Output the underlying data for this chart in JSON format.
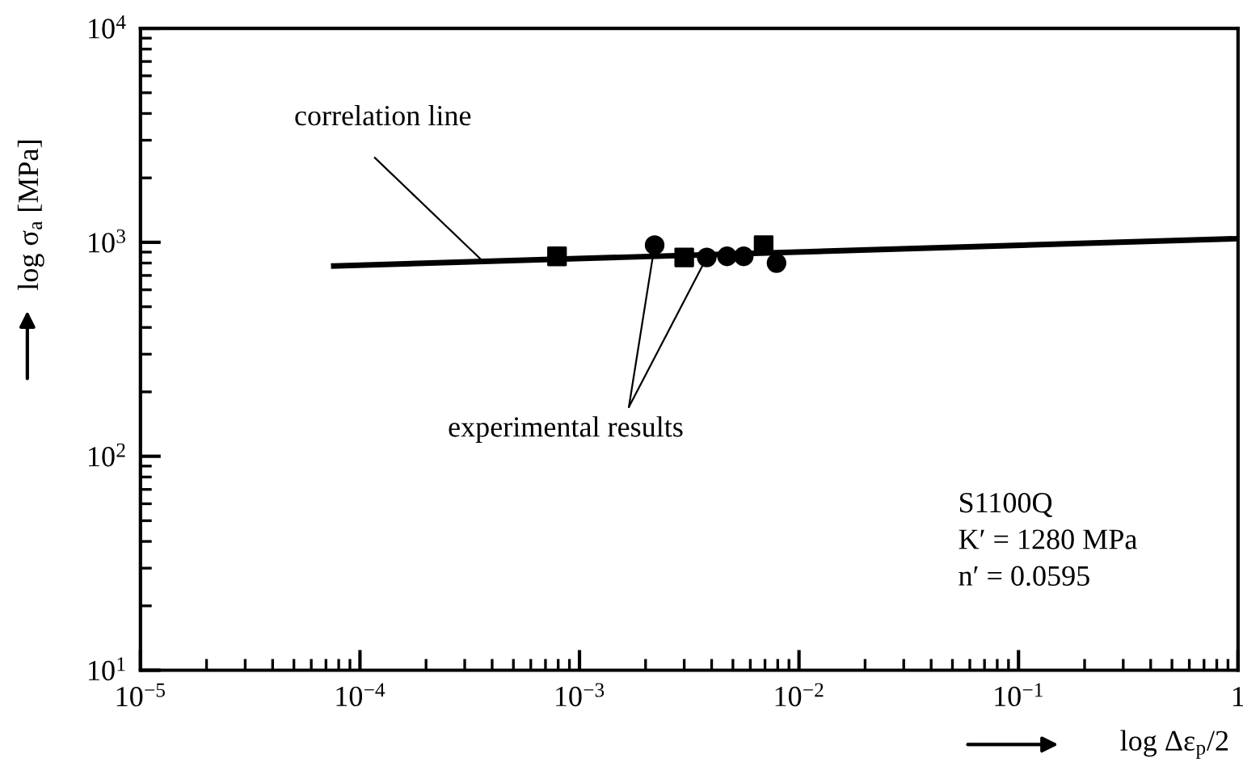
{
  "chart_data": {
    "type": "scatter",
    "xlabel": "log Δε$_{p}$/2",
    "ylabel": "log σ$_{a}$ [MPa]",
    "log": "xy",
    "xlim": [
      1e-05,
      1
    ],
    "ylim": [
      10,
      10000
    ],
    "xticks": [
      {
        "value": 1e-05,
        "label": "10$^{−5}$"
      },
      {
        "value": 0.0001,
        "label": "10$^{−4}$"
      },
      {
        "value": 0.001,
        "label": "10$^{−3}$"
      },
      {
        "value": 0.01,
        "label": "10$^{−2}$"
      },
      {
        "value": 0.1,
        "label": "10$^{−1}$"
      },
      1
    ],
    "yticks": [
      {
        "value": 10,
        "label": "10$^{1}$"
      },
      {
        "value": 100,
        "label": "10$^{2}$"
      },
      {
        "value": 1000,
        "label": "10$^{3}$"
      },
      {
        "value": 10000,
        "label": "10$^{4}$"
      }
    ],
    "grid": false,
    "series": [
      {
        "type": "line",
        "color": "#000000",
        "x": [
          7.6e-05,
          1
        ],
        "values": [
          775,
          1040
        ],
        "line_style": "solid",
        "marker": "none"
      },
      {
        "color": "#000000",
        "marker": "square",
        "x": [
          0.00079,
          0.003,
          0.0069
        ],
        "values": [
          860,
          850,
          970
        ]
      },
      {
        "color": "#000000",
        "marker": "circle",
        "x": [
          0.0022,
          0.0038,
          0.0047,
          0.0056,
          0.0079
        ],
        "values": [
          970,
          850,
          860,
          860,
          800
        ]
      }
    ],
    "annotations": [
      {
        "text": "correlation line",
        "x": 0.00037,
        "y": 800
      },
      {
        "text": "experimental results",
        "x": 0.0022,
        "y": 970
      },
      "S1100Q\nK′ = 1280 MPa\nn′ = 0.0595"
    ]
  }
}
